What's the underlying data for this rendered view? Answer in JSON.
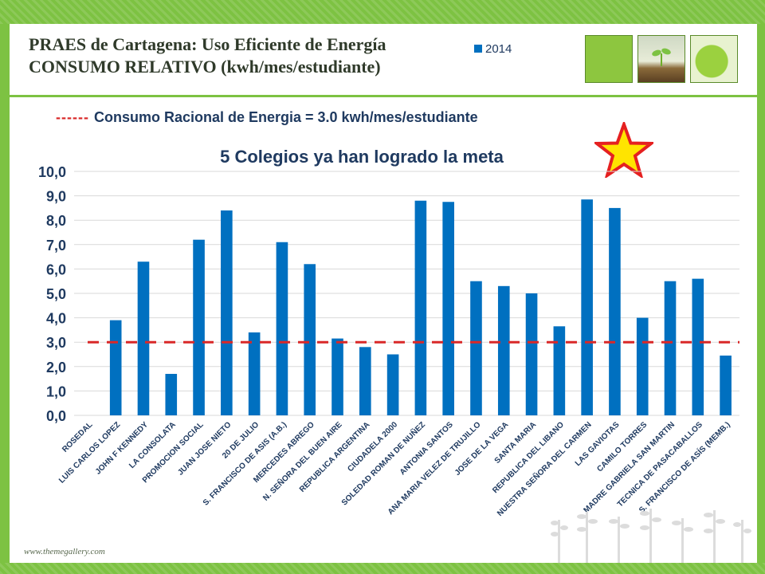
{
  "slide": {
    "title_line1": "PRAES de Cartagena: Uso Eficiente de Energía",
    "title_line2": "CONSUMO RELATIVO (kwh/mes/estudiante)",
    "reference_legend_dash": "------",
    "reference_legend": "Consumo Racional de Energia = 3.0 kwh/mes/estudiante",
    "footer_url": "www.themegallery.com",
    "colors": {
      "accent_green": "#7dc242",
      "bar_blue": "#0070c0",
      "reference_red": "#d92828",
      "star_fill": "#ffe400",
      "star_stroke": "#e52020"
    }
  },
  "chart_data": {
    "type": "bar",
    "title": "5 Colegios ya han logrado la meta",
    "legend": [
      "2014"
    ],
    "legend_position": "top-right",
    "categories": [
      "ROSEDAL",
      "LUIS CARLOS LOPEZ",
      "JOHN F KENNEDY",
      "LA CONSOLATA",
      "PROMOCION SOCIAL",
      "JUAN JOSE NIETO",
      "20 DE JULIO",
      "S. FRANCISCO DE ASIS (A.B.)",
      "MERCEDES ABREGO",
      "N. SEÑORA DEL BUEN AIRE",
      "REPUBLICA ARGENTINA",
      "CIUDADELA 2000",
      "SOLEDAD ROMAN DE NUÑEZ",
      "ANTONIA SANTOS",
      "ANA MARIA VELEZ DE TRUJILLO",
      "JOSE DE LA VEGA",
      "SANTA MARIA",
      "REPUBLICA DEL LIBANO",
      "NUESTRA SEÑORA DEL  CARMEN",
      "LAS GAVIOTAS",
      "CAMILO TORRES",
      "MADRE GABRIELA SAN MARTIN",
      "TECNICA DE PASACABALLOS",
      "S. FRANCISCO DE ASÍS (MEMB.)"
    ],
    "series": [
      {
        "name": "2014",
        "values": [
          0,
          3.9,
          6.3,
          1.7,
          7.2,
          8.4,
          3.4,
          7.1,
          6.2,
          3.15,
          2.8,
          2.5,
          8.8,
          8.75,
          5.5,
          5.3,
          5.0,
          3.65,
          8.85,
          8.5,
          4.0,
          5.5,
          5.6,
          2.45
        ]
      }
    ],
    "reference_line": {
      "value": 3.0,
      "label": "Consumo Racional de Energia"
    },
    "ylim": [
      0,
      10
    ],
    "yticks": [
      "0,0",
      "1,0",
      "2,0",
      "3,0",
      "4,0",
      "5,0",
      "6,0",
      "7,0",
      "8,0",
      "9,0",
      "10,0"
    ],
    "grid": true
  }
}
